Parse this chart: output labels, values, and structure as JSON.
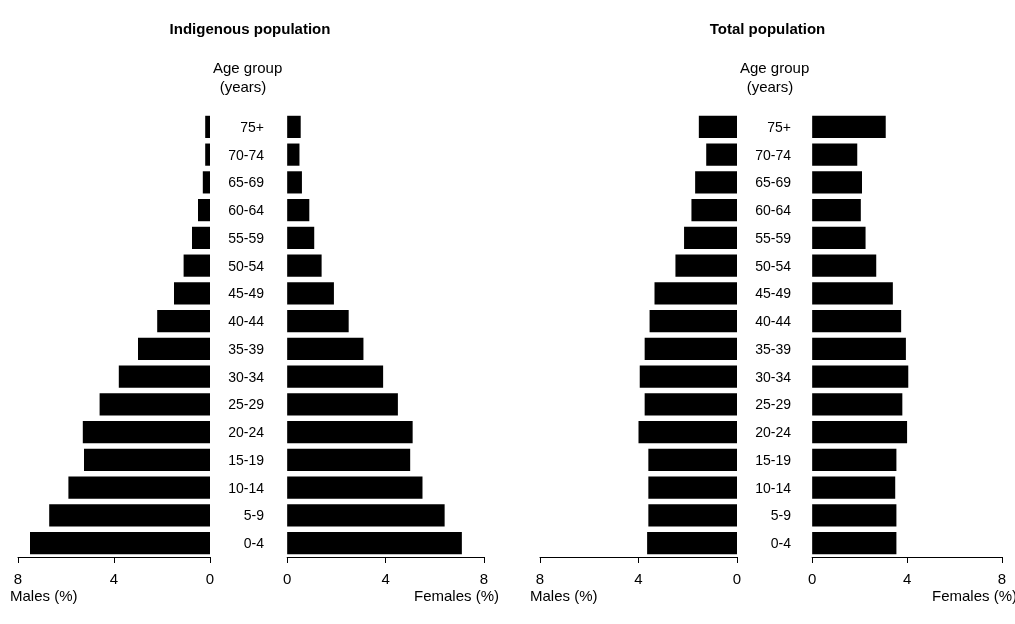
{
  "chart_data": [
    {
      "type": "bar",
      "orientation": "horizontal",
      "title": "Indigenous population",
      "xlabel": "Males (%)",
      "ylabel": "Age group\n(years)",
      "categories": [
        "75+",
        "70-74",
        "65-69",
        "60-64",
        "55-59",
        "50-54",
        "45-49",
        "40-44",
        "35-39",
        "30-34",
        "25-29",
        "20-24",
        "15-19",
        "10-14",
        "5-9",
        "0-4"
      ],
      "series": [
        {
          "color": "#000000",
          "values": [
            0.2,
            0.2,
            0.3,
            0.5,
            0.75,
            1.1,
            1.5,
            2.2,
            3.0,
            3.8,
            4.6,
            5.3,
            5.25,
            5.9,
            6.7,
            7.5
          ]
        }
      ],
      "xlim": [
        8,
        0
      ],
      "xticks": [
        8,
        4,
        0
      ]
    },
    {
      "type": "bar",
      "orientation": "horizontal",
      "xlabel": "Females (%)",
      "tick_labels": "x",
      "categories": [
        null,
        null,
        null,
        null,
        null,
        null,
        null,
        null,
        null,
        null,
        null,
        null,
        null,
        null,
        null,
        null
      ],
      "series": [
        {
          "color": "#000000",
          "values": [
            0.55,
            0.5,
            0.6,
            0.9,
            1.1,
            1.4,
            1.9,
            2.5,
            3.1,
            3.9,
            4.5,
            5.1,
            5.0,
            5.5,
            6.4,
            7.1
          ]
        }
      ],
      "xlim": [
        0,
        8
      ],
      "xticks": [
        0,
        4,
        8
      ]
    },
    {
      "type": "bar",
      "orientation": "horizontal",
      "title": "Total population",
      "xlabel": "Males (%)",
      "ylabel": "Age group\n(years)",
      "categories": [
        "75+",
        "70-74",
        "65-69",
        "60-64",
        "55-59",
        "50-54",
        "45-49",
        "40-44",
        "35-39",
        "30-34",
        "25-29",
        "20-24",
        "15-19",
        "10-14",
        "5-9",
        "0-4"
      ],
      "series": [
        {
          "color": "#000000",
          "values": [
            1.55,
            1.25,
            1.7,
            1.85,
            2.15,
            2.5,
            3.35,
            3.55,
            3.75,
            3.95,
            3.75,
            4.0,
            3.6,
            3.6,
            3.6,
            3.65
          ]
        }
      ],
      "xlim": [
        8,
        0
      ],
      "xticks": [
        8,
        4,
        0
      ]
    },
    {
      "type": "bar",
      "orientation": "horizontal",
      "xlabel": "Females (%)",
      "tick_labels": "x",
      "categories": [
        null,
        null,
        null,
        null,
        null,
        null,
        null,
        null,
        null,
        null,
        null,
        null,
        null,
        null,
        null,
        null
      ],
      "series": [
        {
          "color": "#000000",
          "values": [
            3.1,
            1.9,
            2.1,
            2.05,
            2.25,
            2.7,
            3.4,
            3.75,
            3.95,
            4.05,
            3.8,
            4.0,
            3.55,
            3.5,
            3.55,
            3.55
          ]
        }
      ],
      "xlim": [
        0,
        8
      ],
      "xticks": [
        0,
        4,
        8
      ]
    }
  ]
}
